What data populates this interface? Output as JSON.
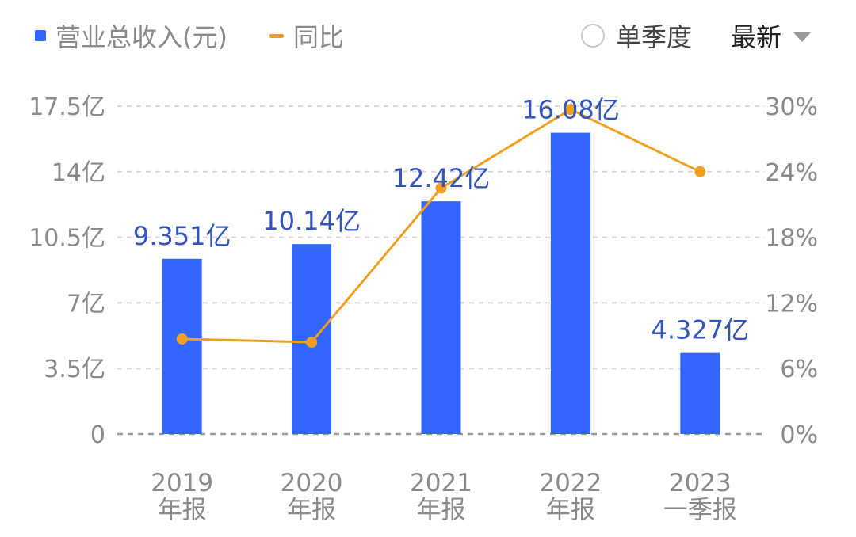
{
  "legend": {
    "bar_label": "营业总收入(元)",
    "line_label": "同比"
  },
  "controls": {
    "quarter_toggle_label": "单季度",
    "period_select_value": "最新"
  },
  "colors": {
    "bar": "#3366ff",
    "line": "#f0a020",
    "bar_label": "#3355bb",
    "axis_text": "#8a8a8a",
    "grid": "#d8d8d8"
  },
  "chart_data": {
    "type": "bar",
    "categories": [
      {
        "line1": "2019",
        "line2": "年报"
      },
      {
        "line1": "2020",
        "line2": "年报"
      },
      {
        "line1": "2021",
        "line2": "年报"
      },
      {
        "line1": "2022",
        "line2": "年报"
      },
      {
        "line1": "2023",
        "line2": "一季报"
      }
    ],
    "series": [
      {
        "name": "营业总收入(元)",
        "type": "bar",
        "axis": "left",
        "values": [
          9.351,
          10.14,
          12.42,
          16.08,
          4.327
        ],
        "data_labels": [
          "9.351亿",
          "10.14亿",
          "12.42亿",
          "16.08亿",
          "4.327亿"
        ]
      },
      {
        "name": "同比",
        "type": "line",
        "axis": "right",
        "values": [
          8.7,
          8.4,
          22.5,
          29.7,
          24.0
        ]
      }
    ],
    "y_left": {
      "ticks": [
        0,
        3.5,
        7,
        10.5,
        14,
        17.5
      ],
      "tick_labels": [
        "0",
        "3.5亿",
        "7亿",
        "10.5亿",
        "14亿",
        "17.5亿"
      ],
      "ylim": [
        0,
        17.5
      ]
    },
    "y_right": {
      "ticks": [
        0,
        6,
        12,
        18,
        24,
        30
      ],
      "tick_labels": [
        "0%",
        "6%",
        "12%",
        "18%",
        "24%",
        "30%"
      ],
      "ylim": [
        0,
        30
      ]
    },
    "grid": true
  }
}
